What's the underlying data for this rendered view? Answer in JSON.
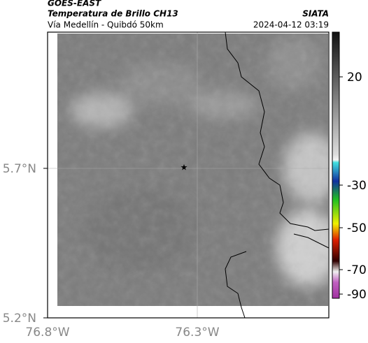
{
  "header": {
    "satellite": "GOES-EAST",
    "product": "Temperatura de Brillo CH13",
    "region": "Vía Medellín - Quibdó 50km",
    "source": "SIATA",
    "datetime": "2024-04-12 03:19"
  },
  "map": {
    "lat_labels": [
      "5.7°N",
      "5.2°N"
    ],
    "lon_labels": [
      "76.8°W",
      "76.3°W"
    ]
  },
  "colorbar": {
    "labels": [
      "20",
      "-30",
      "-50",
      "-70",
      "-90"
    ]
  }
}
